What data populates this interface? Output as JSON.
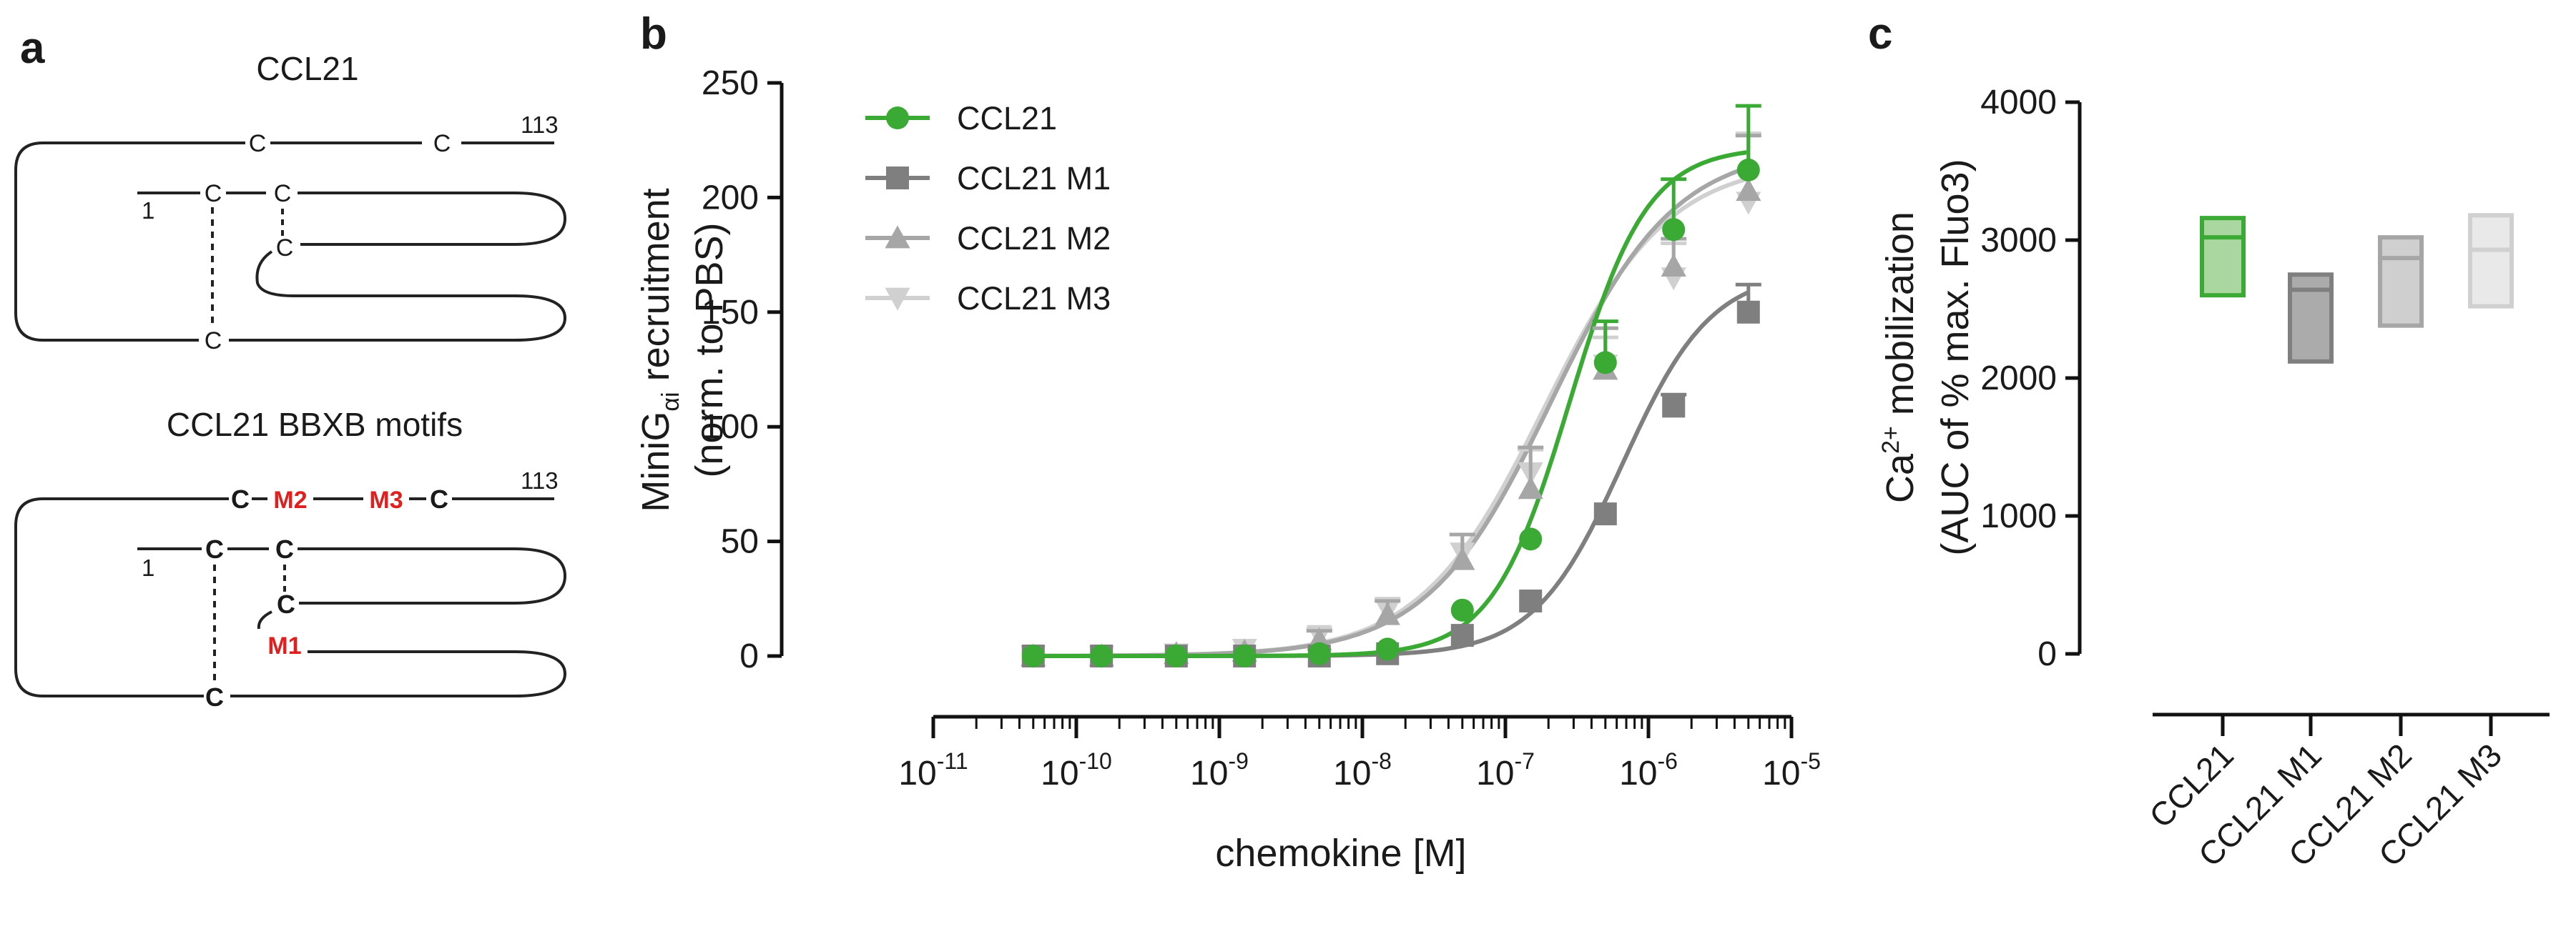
{
  "panels": {
    "a": "a",
    "b": "b",
    "c": "c"
  },
  "diagram": {
    "top_title": "CCL21",
    "bottom_title": "CCL21 BBXB motifs",
    "residue_start": "1",
    "residue_end": "113",
    "cysteine": "C",
    "motifs": [
      "M1",
      "M2",
      "M3"
    ],
    "motif_color": "#e0201f"
  },
  "chart_data": [
    {
      "type": "line",
      "panel": "b",
      "title": "",
      "xlabel": "chemokine [M]",
      "ylabel": "MiniGαi recruitment (norm. to PBS)",
      "ylabel_parts": {
        "main": "MiniG",
        "subscript": "αi",
        "rest": " recruitment",
        "line2": "(norm. to PBS)"
      },
      "x_scale": "log",
      "xlim": [
        1e-11,
        1e-05
      ],
      "ylim": [
        0,
        250
      ],
      "x_ticks": [
        {
          "base": "10",
          "exp": "-11",
          "value": 1e-11
        },
        {
          "base": "10",
          "exp": "-10",
          "value": 1e-10
        },
        {
          "base": "10",
          "exp": "-9",
          "value": 1e-09
        },
        {
          "base": "10",
          "exp": "-8",
          "value": 1e-08
        },
        {
          "base": "10",
          "exp": "-7",
          "value": 1e-07
        },
        {
          "base": "10",
          "exp": "-6",
          "value": 1e-06
        },
        {
          "base": "10",
          "exp": "-5",
          "value": 1e-05
        }
      ],
      "y_ticks": [
        "0",
        "50",
        "100",
        "150",
        "200",
        "250"
      ],
      "legend_position": "top-left",
      "grid": false,
      "x": [
        5e-11,
        1.5e-10,
        5e-10,
        1.5e-09,
        5e-09,
        1.5e-08,
        5e-08,
        1.5e-07,
        5e-07,
        1.5e-06,
        5e-06
      ],
      "series": [
        {
          "name": "CCL21",
          "color": "#3aaa35",
          "marker": "circle",
          "values": [
            0,
            0,
            0,
            0,
            1,
            3,
            20,
            51,
            128,
            186,
            212
          ],
          "errors": [
            0,
            0,
            0,
            0,
            0,
            0,
            0,
            0,
            18,
            22,
            28
          ],
          "fit": {
            "bottom": 0,
            "top": 222,
            "logEC50": -6.55,
            "hill": 1.6
          }
        },
        {
          "name": "CCL21 M1",
          "color": "#7f7f7f",
          "marker": "square",
          "values": [
            0,
            0,
            0,
            0,
            0,
            1,
            9,
            24,
            62,
            109,
            150
          ],
          "errors": [
            0,
            0,
            0,
            0,
            0,
            0,
            0,
            0,
            0,
            5,
            12
          ],
          "fit": {
            "bottom": 0,
            "top": 168,
            "logEC50": -6.18,
            "hill": 1.4
          }
        },
        {
          "name": "CCL21 M2",
          "color": "#a6a6a6",
          "marker": "triangle-up",
          "values": [
            0,
            0,
            1,
            2,
            7,
            18,
            42,
            73,
            125,
            170,
            203
          ],
          "errors": [
            0,
            0,
            0,
            0,
            4,
            6,
            11,
            18,
            18,
            12,
            24
          ],
          "fit": {
            "bottom": 0,
            "top": 222,
            "logEC50": -6.68,
            "hill": 1.0
          }
        },
        {
          "name": "CCL21 M3",
          "color": "#d0d0d0",
          "marker": "triangle-down",
          "values": [
            0,
            0,
            1,
            3,
            9,
            20,
            45,
            80,
            127,
            165,
            198
          ],
          "errors": [
            0,
            0,
            0,
            0,
            3,
            5,
            8,
            10,
            12,
            15,
            30
          ],
          "fit": {
            "bottom": 0,
            "top": 216,
            "logEC50": -6.73,
            "hill": 1.0
          }
        }
      ]
    },
    {
      "type": "box",
      "panel": "c",
      "title": "",
      "xlabel": "",
      "ylabel": "Ca2+ mobilization (AUC of % max. Fluo3)",
      "ylabel_parts": {
        "main": "Ca",
        "superscript": "2+",
        "rest": " mobilization",
        "line2": "(AUC of % max. Fluo3)"
      },
      "ylim": [
        0,
        4000
      ],
      "y_ticks": [
        "0",
        "1000",
        "2000",
        "3000",
        "4000"
      ],
      "grid": false,
      "categories": [
        "CCL21",
        "CCL21 M1",
        "CCL21 M2",
        "CCL21 M3"
      ],
      "series": [
        {
          "name": "CCL21",
          "color": "#3aaa35",
          "fill": "#a9d79f",
          "min": 2600,
          "mean": 3020,
          "max": 3160
        },
        {
          "name": "CCL21 M1",
          "color": "#7f7f7f",
          "fill": "#ababab",
          "min": 2120,
          "mean": 2640,
          "max": 2750
        },
        {
          "name": "CCL21 M2",
          "color": "#a6a6a6",
          "fill": "#cfcfcf",
          "min": 2380,
          "mean": 2870,
          "max": 3020
        },
        {
          "name": "CCL21 M3",
          "color": "#d0d0d0",
          "fill": "#e9e9e9",
          "min": 2520,
          "mean": 2930,
          "max": 3180
        }
      ]
    }
  ]
}
